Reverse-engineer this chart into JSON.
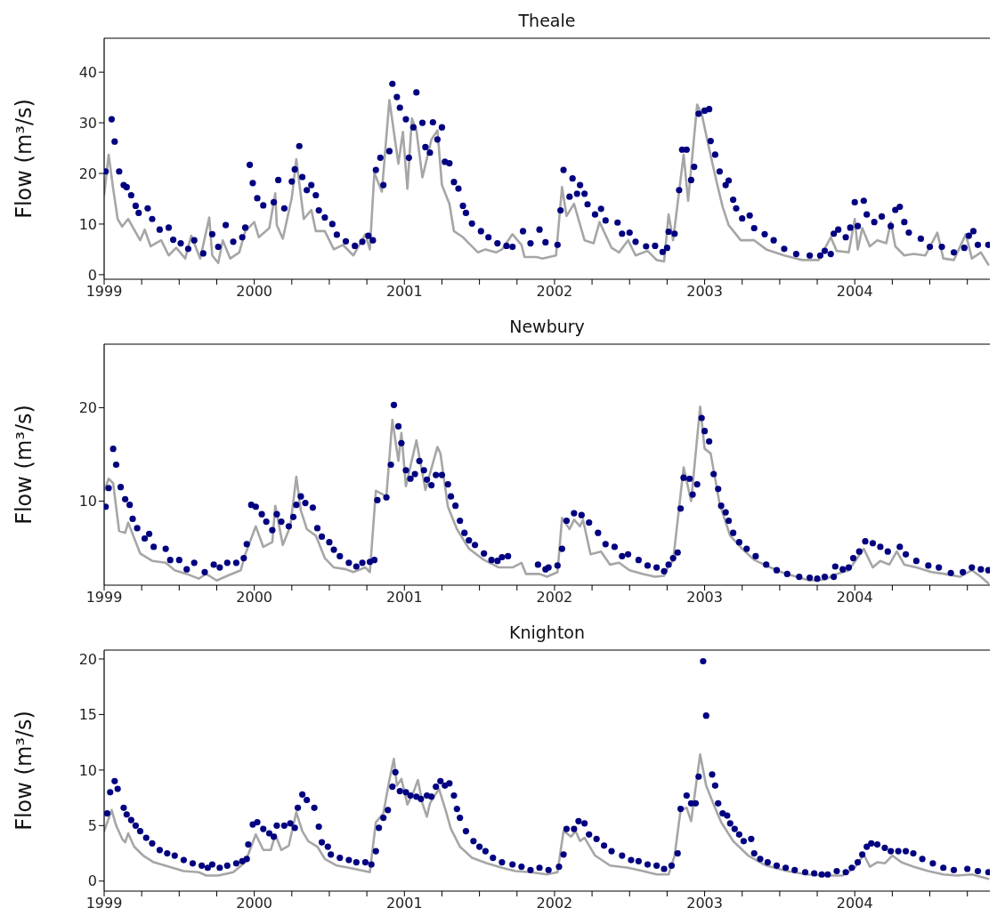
{
  "chart_data": [
    {
      "type": "line",
      "title": "Theale",
      "ylabel": "Flow (m³/s)",
      "xlim": [
        1999,
        2004.9
      ],
      "xticks": [
        1999,
        {
          "value": 1999.25,
          "label": null
        },
        {
          "value": 1999.5,
          "label": null
        },
        {
          "value": 1999.75,
          "label": null
        },
        2000,
        {
          "value": 2000.25,
          "label": null
        },
        {
          "value": 2000.5,
          "label": null
        },
        {
          "value": 2000.75,
          "label": null
        },
        2001,
        {
          "value": 2001.25,
          "label": null
        },
        {
          "value": 2001.5,
          "label": null
        },
        {
          "value": 2001.75,
          "label": null
        },
        2002,
        {
          "value": 2002.25,
          "label": null
        },
        {
          "value": 2002.5,
          "label": null
        },
        {
          "value": 2002.75,
          "label": null
        },
        2003,
        {
          "value": 2003.25,
          "label": null
        },
        {
          "value": 2003.5,
          "label": null
        },
        {
          "value": 2003.75,
          "label": null
        },
        2004,
        {
          "value": 2004.25,
          "label": null
        },
        {
          "value": 2004.5,
          "label": null
        },
        {
          "value": 2004.75,
          "label": null
        }
      ],
      "ylim": [
        -0.9,
        46.7
      ],
      "yticks": [
        0,
        10,
        20,
        30,
        40
      ],
      "series": [
        {
          "color": "#a6a6a6",
          "x": [
            1999.0,
            1999.03,
            1999.06,
            1999.09,
            1999.12,
            1999.16,
            1999.24,
            1999.27,
            1999.31,
            1999.38,
            1999.43,
            1999.48,
            1999.54,
            1999.58,
            1999.64,
            1999.7,
            1999.72,
            1999.76,
            1999.79,
            1999.84,
            1999.9,
            1999.94,
            2000.0,
            2000.03,
            2000.1,
            2000.14,
            2000.15,
            2000.19,
            2000.25,
            2000.28,
            2000.33,
            2000.38,
            2000.41,
            2000.47,
            2000.53,
            2000.59,
            2000.66,
            2000.74,
            2000.77,
            2000.8,
            2000.85,
            2000.9,
            2000.96,
            2000.99,
            2001.02,
            2001.05,
            2001.08,
            2001.12,
            2001.18,
            2001.22,
            2001.25,
            2001.3,
            2001.33,
            2001.39,
            2001.43,
            2001.49,
            2001.54,
            2001.61,
            2001.65,
            2001.72,
            2001.78,
            2001.8,
            2001.88,
            2001.92,
            2002.01,
            2002.05,
            2002.08,
            2002.13,
            2002.2,
            2002.26,
            2002.3,
            2002.38,
            2002.43,
            2002.49,
            2002.54,
            2002.62,
            2002.68,
            2002.73,
            2002.76,
            2002.79,
            2002.86,
            2002.89,
            2002.95,
            2002.98,
            2003.03,
            2003.08,
            2003.12,
            2003.16,
            2003.24,
            2003.33,
            2003.41,
            2003.53,
            2003.65,
            2003.76,
            2003.84,
            2003.88,
            2003.96,
            2004.0,
            2004.02,
            2004.05,
            2004.1,
            2004.15,
            2004.21,
            2004.24,
            2004.27,
            2004.33,
            2004.39,
            2004.47,
            2004.55,
            2004.59,
            2004.66,
            2004.74,
            2004.78,
            2004.84,
            2004.89
          ],
          "values": [
            15.8,
            23.7,
            17.0,
            11.0,
            9.5,
            11.0,
            6.8,
            8.9,
            5.6,
            6.8,
            3.8,
            5.3,
            3.2,
            7.7,
            3.2,
            11.3,
            3.8,
            2.3,
            6.8,
            3.2,
            4.4,
            8.6,
            10.4,
            7.4,
            9.2,
            16.1,
            9.8,
            7.1,
            15.2,
            22.8,
            11.0,
            12.8,
            8.6,
            8.6,
            5.0,
            5.9,
            3.8,
            8.0,
            5.0,
            20.1,
            16.4,
            34.5,
            21.9,
            28.2,
            17.0,
            30.9,
            28.5,
            19.2,
            26.7,
            28.5,
            17.7,
            14.0,
            8.6,
            7.4,
            6.2,
            4.4,
            5.0,
            4.4,
            5.0,
            8.0,
            5.9,
            3.5,
            3.5,
            3.2,
            3.8,
            17.3,
            11.6,
            14.0,
            6.8,
            6.2,
            10.4,
            5.3,
            4.4,
            6.8,
            3.8,
            4.7,
            2.9,
            2.6,
            11.9,
            6.8,
            23.7,
            14.6,
            33.6,
            31.8,
            24.9,
            18.3,
            13.4,
            9.8,
            6.8,
            6.8,
            5.0,
            3.8,
            2.9,
            2.9,
            7.4,
            4.7,
            4.4,
            11.0,
            5.0,
            9.2,
            5.6,
            6.8,
            6.2,
            10.4,
            5.6,
            3.8,
            4.1,
            3.8,
            8.3,
            3.2,
            2.9,
            8.0,
            3.2,
            4.4,
            2.0
          ]
        },
        {
          "type": "scatter",
          "marker": "circle",
          "color": "#000080",
          "x": [
            1999.01,
            1999.05,
            1999.07,
            1999.1,
            1999.13,
            1999.15,
            1999.18,
            1999.21,
            1999.23,
            1999.29,
            1999.32,
            1999.37,
            1999.43,
            1999.46,
            1999.51,
            1999.56,
            1999.6,
            1999.66,
            1999.72,
            1999.76,
            1999.81,
            1999.86,
            1999.92,
            1999.94,
            1999.97,
            1999.99,
            2000.02,
            2000.06,
            2000.13,
            2000.16,
            2000.2,
            2000.25,
            2000.27,
            2000.3,
            2000.32,
            2000.35,
            2000.38,
            2000.41,
            2000.43,
            2000.47,
            2000.52,
            2000.55,
            2000.61,
            2000.67,
            2000.72,
            2000.76,
            2000.79,
            2000.81,
            2000.84,
            2000.86,
            2000.9,
            2000.92,
            2000.95,
            2000.97,
            2001.01,
            2001.03,
            2001.06,
            2001.08,
            2001.12,
            2001.14,
            2001.17,
            2001.19,
            2001.22,
            2001.25,
            2001.27,
            2001.3,
            2001.33,
            2001.36,
            2001.39,
            2001.41,
            2001.45,
            2001.51,
            2001.56,
            2001.62,
            2001.68,
            2001.72,
            2001.79,
            2001.84,
            2001.9,
            2001.94,
            2002.02,
            2002.04,
            2002.06,
            2002.1,
            2002.12,
            2002.15,
            2002.17,
            2002.2,
            2002.22,
            2002.27,
            2002.31,
            2002.34,
            2002.42,
            2002.45,
            2002.5,
            2002.54,
            2002.61,
            2002.67,
            2002.72,
            2002.75,
            2002.76,
            2002.8,
            2002.83,
            2002.85,
            2002.88,
            2002.91,
            2002.93,
            2002.96,
            2003.0,
            2003.03,
            2003.04,
            2003.07,
            2003.1,
            2003.14,
            2003.16,
            2003.19,
            2003.21,
            2003.25,
            2003.3,
            2003.33,
            2003.4,
            2003.46,
            2003.53,
            2003.61,
            2003.7,
            2003.77,
            2003.8,
            2003.84,
            2003.86,
            2003.89,
            2003.94,
            2003.97,
            2004.0,
            2004.02,
            2004.06,
            2004.08,
            2004.13,
            2004.18,
            2004.24,
            2004.27,
            2004.3,
            2004.33,
            2004.36,
            2004.44,
            2004.5,
            2004.58,
            2004.66,
            2004.73,
            2004.76,
            2004.79,
            2004.82,
            2004.89
          ],
          "values": [
            20.4,
            30.7,
            26.3,
            20.4,
            17.7,
            17.3,
            15.7,
            13.6,
            12.2,
            13.1,
            11.0,
            8.9,
            9.3,
            6.9,
            6.2,
            5.1,
            6.8,
            4.2,
            8.0,
            5.5,
            9.8,
            6.5,
            7.4,
            9.3,
            21.7,
            18.1,
            15.1,
            13.7,
            14.3,
            18.7,
            13.1,
            18.4,
            20.8,
            25.4,
            19.3,
            16.7,
            17.7,
            15.7,
            12.7,
            11.3,
            10.0,
            7.9,
            6.6,
            5.7,
            6.5,
            7.7,
            6.8,
            20.7,
            23.1,
            17.7,
            24.4,
            37.7,
            35.1,
            33.0,
            30.7,
            23.1,
            29.1,
            36.0,
            30.0,
            25.2,
            24.1,
            30.1,
            26.7,
            29.1,
            22.3,
            22.0,
            18.3,
            17.0,
            13.6,
            12.2,
            10.1,
            8.6,
            7.4,
            6.2,
            5.7,
            5.5,
            8.6,
            6.2,
            8.9,
            6.4,
            5.9,
            12.7,
            20.7,
            15.4,
            19.0,
            16.0,
            17.7,
            16.0,
            13.9,
            11.9,
            13.0,
            10.7,
            10.3,
            8.1,
            8.3,
            6.5,
            5.6,
            5.7,
            4.5,
            5.3,
            8.5,
            8.1,
            16.7,
            24.7,
            24.7,
            18.7,
            21.3,
            31.8,
            32.4,
            32.7,
            26.4,
            23.7,
            20.4,
            17.7,
            18.6,
            14.8,
            13.1,
            11.1,
            11.7,
            9.2,
            8.0,
            6.8,
            5.1,
            4.1,
            3.8,
            3.8,
            4.7,
            4.1,
            8.1,
            8.9,
            7.4,
            9.3,
            14.3,
            9.6,
            14.6,
            11.9,
            10.4,
            11.5,
            9.6,
            12.8,
            13.4,
            10.4,
            8.3,
            7.1,
            5.5,
            5.5,
            4.4,
            5.3,
            7.7,
            8.6,
            5.9,
            5.9
          ]
        }
      ]
    },
    {
      "type": "line",
      "title": "Newbury",
      "ylabel": "Flow (m³/s)",
      "xlim": [
        1999,
        2004.9
      ],
      "xticks": [
        1999,
        {
          "value": 1999.25,
          "label": null
        },
        {
          "value": 1999.5,
          "label": null
        },
        {
          "value": 1999.75,
          "label": null
        },
        2000,
        {
          "value": 2000.25,
          "label": null
        },
        {
          "value": 2000.5,
          "label": null
        },
        {
          "value": 2000.75,
          "label": null
        },
        2001,
        {
          "value": 2001.25,
          "label": null
        },
        {
          "value": 2001.5,
          "label": null
        },
        {
          "value": 2001.75,
          "label": null
        },
        2002,
        {
          "value": 2002.25,
          "label": null
        },
        {
          "value": 2002.5,
          "label": null
        },
        {
          "value": 2002.75,
          "label": null
        },
        2003,
        {
          "value": 2003.25,
          "label": null
        },
        {
          "value": 2003.5,
          "label": null
        },
        {
          "value": 2003.75,
          "label": null
        },
        2004,
        {
          "value": 2004.25,
          "label": null
        },
        {
          "value": 2004.5,
          "label": null
        },
        {
          "value": 2004.75,
          "label": null
        }
      ],
      "ylim": [
        1,
        26.8
      ],
      "yticks": [
        10,
        20
      ],
      "series": [
        {
          "color": "#a6a6a6",
          "x": [
            1999.0,
            1999.03,
            1999.06,
            1999.1,
            1999.14,
            1999.16,
            1999.24,
            1999.32,
            1999.41,
            1999.47,
            1999.55,
            1999.63,
            1999.68,
            1999.75,
            1999.82,
            1999.91,
            1999.94,
            2000.01,
            2000.06,
            2000.12,
            2000.14,
            2000.19,
            2000.24,
            2000.28,
            2000.31,
            2000.35,
            2000.41,
            2000.47,
            2000.53,
            2000.61,
            2000.66,
            2000.74,
            2000.77,
            2000.81,
            2000.88,
            2000.92,
            2000.96,
            2000.98,
            2001.01,
            2001.08,
            2001.14,
            2001.22,
            2001.24,
            2001.29,
            2001.35,
            2001.43,
            2001.53,
            2001.63,
            2001.72,
            2001.78,
            2001.81,
            2001.9,
            2001.95,
            2002.02,
            2002.05,
            2002.1,
            2002.13,
            2002.17,
            2002.19,
            2002.24,
            2002.31,
            2002.37,
            2002.43,
            2002.5,
            2002.59,
            2002.67,
            2002.73,
            2002.76,
            2002.79,
            2002.86,
            2002.91,
            2002.97,
            2003.0,
            2003.04,
            2003.1,
            2003.17,
            2003.25,
            2003.33,
            2003.41,
            2003.51,
            2003.61,
            2003.7,
            2003.8,
            2003.88,
            2003.96,
            2004.06,
            2004.12,
            2004.17,
            2004.23,
            2004.28,
            2004.33,
            2004.41,
            2004.51,
            2004.6,
            2004.7,
            2004.78,
            2004.84,
            2004.89
          ],
          "values": [
            11.1,
            12.4,
            11.9,
            6.8,
            6.6,
            7.7,
            4.4,
            3.6,
            3.4,
            2.6,
            2.2,
            1.7,
            2.2,
            1.5,
            2.0,
            2.6,
            4.3,
            7.3,
            5.1,
            5.6,
            9.5,
            5.3,
            7.3,
            12.6,
            9.0,
            7.0,
            6.3,
            3.9,
            2.9,
            2.7,
            2.4,
            2.9,
            2.4,
            11.1,
            10.5,
            18.7,
            14.3,
            17.3,
            11.6,
            16.5,
            11.2,
            15.8,
            15.1,
            9.4,
            7.0,
            4.9,
            3.7,
            2.9,
            2.9,
            3.4,
            2.2,
            2.2,
            1.9,
            2.4,
            8.2,
            7.0,
            8.0,
            7.3,
            8.0,
            4.3,
            4.6,
            3.2,
            3.4,
            2.6,
            2.2,
            1.9,
            2.0,
            3.1,
            3.6,
            13.6,
            10.0,
            20.1,
            15.6,
            15.1,
            9.7,
            6.3,
            4.9,
            3.7,
            3.1,
            2.4,
            1.9,
            1.5,
            1.6,
            2.2,
            2.6,
            4.9,
            2.9,
            3.6,
            3.2,
            4.6,
            3.2,
            2.9,
            2.4,
            2.2,
            1.9,
            2.6,
            1.9,
            1.2
          ]
        },
        {
          "type": "scatter",
          "marker": "circle",
          "color": "#000080",
          "x": [
            1999.01,
            1999.03,
            1999.06,
            1999.08,
            1999.11,
            1999.14,
            1999.17,
            1999.19,
            1999.22,
            1999.27,
            1999.3,
            1999.33,
            1999.41,
            1999.44,
            1999.5,
            1999.55,
            1999.6,
            1999.67,
            1999.73,
            1999.77,
            1999.82,
            1999.88,
            1999.93,
            1999.95,
            1999.98,
            2000.01,
            2000.05,
            2000.08,
            2000.12,
            2000.15,
            2000.18,
            2000.23,
            2000.26,
            2000.28,
            2000.31,
            2000.34,
            2000.39,
            2000.42,
            2000.45,
            2000.5,
            2000.53,
            2000.57,
            2000.63,
            2000.68,
            2000.72,
            2000.77,
            2000.8,
            2000.82,
            2000.88,
            2000.91,
            2000.93,
            2000.96,
            2000.98,
            2001.01,
            2001.04,
            2001.07,
            2001.1,
            2001.13,
            2001.15,
            2001.18,
            2001.21,
            2001.25,
            2001.29,
            2001.31,
            2001.34,
            2001.37,
            2001.4,
            2001.43,
            2001.47,
            2001.53,
            2001.58,
            2001.62,
            2001.65,
            2001.69,
            2001.89,
            2001.94,
            2001.96,
            2002.02,
            2002.05,
            2002.08,
            2002.13,
            2002.18,
            2002.23,
            2002.29,
            2002.34,
            2002.4,
            2002.45,
            2002.49,
            2002.56,
            2002.62,
            2002.68,
            2002.73,
            2002.76,
            2002.79,
            2002.82,
            2002.84,
            2002.86,
            2002.9,
            2002.92,
            2002.95,
            2002.98,
            2003.0,
            2003.03,
            2003.06,
            2003.09,
            2003.11,
            2003.14,
            2003.16,
            2003.19,
            2003.23,
            2003.28,
            2003.34,
            2003.41,
            2003.48,
            2003.55,
            2003.63,
            2003.7,
            2003.75,
            2003.8,
            2003.86,
            2003.87,
            2003.92,
            2003.96,
            2003.99,
            2004.03,
            2004.07,
            2004.12,
            2004.17,
            2004.22,
            2004.3,
            2004.34,
            2004.41,
            2004.49,
            2004.56,
            2004.64,
            2004.72,
            2004.78,
            2004.84,
            2004.89
          ],
          "values": [
            9.4,
            11.4,
            15.6,
            13.9,
            11.5,
            10.2,
            9.6,
            8.1,
            7.1,
            6.0,
            6.5,
            5.1,
            4.9,
            3.7,
            3.7,
            2.7,
            3.4,
            2.4,
            3.2,
            2.9,
            3.4,
            3.4,
            3.9,
            5.4,
            9.6,
            9.4,
            8.6,
            7.8,
            6.9,
            8.6,
            7.8,
            7.3,
            8.3,
            9.6,
            10.5,
            9.8,
            9.3,
            7.1,
            6.2,
            5.6,
            4.8,
            4.1,
            3.4,
            3.0,
            3.4,
            3.5,
            3.7,
            10.1,
            10.4,
            13.9,
            20.3,
            18.0,
            16.2,
            13.3,
            12.4,
            12.9,
            14.3,
            13.3,
            12.3,
            11.7,
            12.8,
            12.8,
            11.8,
            10.5,
            9.5,
            7.9,
            6.6,
            5.8,
            5.3,
            4.4,
            3.7,
            3.6,
            4.0,
            4.1,
            3.2,
            2.7,
            2.9,
            3.1,
            4.9,
            7.9,
            8.7,
            8.5,
            7.7,
            6.6,
            5.4,
            5.1,
            4.1,
            4.3,
            3.7,
            3.1,
            2.9,
            2.5,
            3.2,
            3.9,
            4.5,
            9.2,
            12.5,
            12.4,
            10.7,
            11.8,
            18.9,
            17.5,
            16.4,
            12.9,
            11.3,
            9.5,
            8.8,
            7.9,
            6.6,
            5.6,
            4.9,
            4.1,
            3.2,
            2.6,
            2.2,
            1.9,
            1.8,
            1.7,
            1.9,
            1.9,
            3.0,
            2.7,
            2.9,
            3.9,
            4.6,
            5.7,
            5.5,
            5.1,
            4.6,
            5.1,
            4.3,
            3.6,
            3.1,
            2.9,
            2.3,
            2.4,
            2.9,
            2.7,
            2.6
          ]
        }
      ]
    },
    {
      "type": "line",
      "title": "Knighton",
      "ylabel": "Flow (m³/s)",
      "xlim": [
        1999,
        2004.9
      ],
      "xticks": [
        1999,
        {
          "value": 1999.25,
          "label": null
        },
        {
          "value": 1999.5,
          "label": null
        },
        {
          "value": 1999.75,
          "label": null
        },
        2000,
        {
          "value": 2000.25,
          "label": null
        },
        {
          "value": 2000.5,
          "label": null
        },
        {
          "value": 2000.75,
          "label": null
        },
        2001,
        {
          "value": 2001.25,
          "label": null
        },
        {
          "value": 2001.5,
          "label": null
        },
        {
          "value": 2001.75,
          "label": null
        },
        2002,
        {
          "value": 2002.25,
          "label": null
        },
        {
          "value": 2002.5,
          "label": null
        },
        {
          "value": 2002.75,
          "label": null
        },
        2003,
        {
          "value": 2003.25,
          "label": null
        },
        {
          "value": 2003.5,
          "label": null
        },
        {
          "value": 2003.75,
          "label": null
        },
        2004,
        {
          "value": 2004.25,
          "label": null
        },
        {
          "value": 2004.5,
          "label": null
        },
        {
          "value": 2004.75,
          "label": null
        }
      ],
      "ylim": [
        -0.9,
        20.8
      ],
      "yticks": [
        0,
        5,
        10,
        15,
        20
      ],
      "series": [
        {
          "color": "#a6a6a6",
          "x": [
            1999.0,
            1999.05,
            1999.08,
            1999.12,
            1999.14,
            1999.16,
            1999.2,
            1999.26,
            1999.33,
            1999.43,
            1999.53,
            1999.63,
            1999.68,
            1999.76,
            1999.86,
            1999.94,
            2000.01,
            2000.06,
            2000.11,
            2000.14,
            2000.18,
            2000.23,
            2000.28,
            2000.32,
            2000.36,
            2000.42,
            2000.47,
            2000.55,
            2000.63,
            2000.7,
            2000.77,
            2000.81,
            2000.86,
            2000.9,
            2000.93,
            2000.95,
            2000.98,
            2001.02,
            2001.06,
            2001.09,
            2001.12,
            2001.15,
            2001.17,
            2001.23,
            2001.27,
            2001.31,
            2001.37,
            2001.45,
            2001.55,
            2001.65,
            2001.74,
            2001.84,
            2001.95,
            2002.02,
            2002.06,
            2002.11,
            2002.14,
            2002.17,
            2002.2,
            2002.27,
            2002.37,
            2002.49,
            2002.59,
            2002.68,
            2002.76,
            2002.8,
            2002.84,
            2002.88,
            2002.91,
            2002.97,
            2003.01,
            2003.06,
            2003.11,
            2003.19,
            2003.29,
            2003.41,
            2003.55,
            2003.68,
            2003.8,
            2003.92,
            2004.0,
            2004.06,
            2004.1,
            2004.15,
            2004.2,
            2004.25,
            2004.31,
            2004.39,
            2004.49,
            2004.59,
            2004.68,
            2004.78,
            2004.89
          ],
          "values": [
            4.5,
            6.4,
            5.0,
            3.8,
            3.5,
            4.3,
            3.1,
            2.3,
            1.7,
            1.3,
            0.9,
            0.8,
            0.5,
            0.5,
            0.8,
            1.7,
            4.2,
            2.8,
            2.8,
            4.2,
            2.8,
            3.2,
            6.2,
            4.5,
            3.6,
            3.1,
            2.0,
            1.4,
            1.2,
            1.0,
            0.8,
            5.3,
            6.1,
            9.1,
            11.0,
            8.6,
            9.2,
            6.9,
            8.0,
            9.1,
            7.0,
            5.8,
            7.0,
            8.3,
            6.6,
            4.7,
            3.1,
            2.1,
            1.6,
            1.2,
            0.9,
            0.8,
            0.6,
            0.8,
            4.5,
            4.0,
            4.5,
            3.6,
            3.9,
            2.3,
            1.4,
            1.2,
            0.9,
            0.6,
            0.6,
            2.3,
            6.4,
            6.6,
            5.4,
            11.4,
            8.6,
            6.9,
            5.3,
            3.6,
            2.3,
            1.4,
            0.9,
            0.6,
            0.5,
            0.5,
            1.2,
            2.4,
            1.3,
            1.7,
            1.6,
            2.3,
            1.7,
            1.3,
            0.9,
            0.6,
            0.5,
            0.6,
            0.2
          ]
        },
        {
          "type": "scatter",
          "marker": "circle",
          "color": "#000080",
          "x": [
            1999.02,
            1999.04,
            1999.07,
            1999.09,
            1999.13,
            1999.15,
            1999.18,
            1999.21,
            1999.24,
            1999.28,
            1999.32,
            1999.37,
            1999.42,
            1999.47,
            1999.53,
            1999.59,
            1999.65,
            1999.69,
            1999.72,
            1999.77,
            1999.82,
            1999.88,
            1999.92,
            1999.95,
            1999.96,
            1999.99,
            2000.02,
            2000.06,
            2000.1,
            2000.13,
            2000.15,
            2000.2,
            2000.24,
            2000.27,
            2000.29,
            2000.32,
            2000.35,
            2000.4,
            2000.43,
            2000.45,
            2000.49,
            2000.51,
            2000.57,
            2000.63,
            2000.68,
            2000.74,
            2000.78,
            2000.81,
            2000.83,
            2000.86,
            2000.89,
            2000.92,
            2000.94,
            2000.97,
            2001.01,
            2001.04,
            2001.08,
            2001.11,
            2001.15,
            2001.18,
            2001.21,
            2001.24,
            2001.27,
            2001.3,
            2001.33,
            2001.35,
            2001.37,
            2001.41,
            2001.46,
            2001.5,
            2001.54,
            2001.59,
            2001.65,
            2001.72,
            2001.78,
            2001.84,
            2001.9,
            2001.96,
            2002.03,
            2002.06,
            2002.08,
            2002.13,
            2002.16,
            2002.2,
            2002.23,
            2002.28,
            2002.33,
            2002.38,
            2002.45,
            2002.51,
            2002.56,
            2002.62,
            2002.68,
            2002.73,
            2002.78,
            2002.82,
            2002.84,
            2002.88,
            2002.91,
            2002.94,
            2002.96,
            2002.99,
            2003.01,
            2003.05,
            2003.07,
            2003.09,
            2003.12,
            2003.15,
            2003.17,
            2003.2,
            2003.23,
            2003.26,
            2003.31,
            2003.33,
            2003.37,
            2003.42,
            2003.48,
            2003.54,
            2003.6,
            2003.67,
            2003.73,
            2003.78,
            2003.82,
            2003.88,
            2003.94,
            2003.98,
            2004.02,
            2004.05,
            2004.08,
            2004.11,
            2004.15,
            2004.2,
            2004.24,
            2004.29,
            2004.34,
            2004.39,
            2004.45,
            2004.52,
            2004.59,
            2004.66,
            2004.75,
            2004.82,
            2004.89
          ],
          "values": [
            6.1,
            8.0,
            9.0,
            8.3,
            6.6,
            6.0,
            5.5,
            5.0,
            4.5,
            3.9,
            3.4,
            2.8,
            2.5,
            2.3,
            1.9,
            1.6,
            1.4,
            1.2,
            1.5,
            1.2,
            1.4,
            1.6,
            1.8,
            2.0,
            3.3,
            5.1,
            5.3,
            4.7,
            4.3,
            4.0,
            5.0,
            5.0,
            5.2,
            4.8,
            6.6,
            7.8,
            7.3,
            6.6,
            4.9,
            3.5,
            3.1,
            2.4,
            2.1,
            1.9,
            1.7,
            1.7,
            1.5,
            2.7,
            4.8,
            5.7,
            6.4,
            8.5,
            9.8,
            8.1,
            8.0,
            7.7,
            7.6,
            7.4,
            7.7,
            7.6,
            8.5,
            9.0,
            8.6,
            8.8,
            7.7,
            6.5,
            5.7,
            4.5,
            3.6,
            3.1,
            2.7,
            2.1,
            1.7,
            1.5,
            1.3,
            1.0,
            1.2,
            1.0,
            1.3,
            2.4,
            4.7,
            4.7,
            5.4,
            5.2,
            4.2,
            3.8,
            3.2,
            2.7,
            2.3,
            1.9,
            1.8,
            1.5,
            1.4,
            1.1,
            1.4,
            2.5,
            6.5,
            7.7,
            7.0,
            7.0,
            9.4,
            19.8,
            14.9,
            9.6,
            8.6,
            7.0,
            6.1,
            5.9,
            5.2,
            4.7,
            4.2,
            3.6,
            3.8,
            2.5,
            2.0,
            1.7,
            1.4,
            1.2,
            1.0,
            0.8,
            0.7,
            0.6,
            0.6,
            0.9,
            0.8,
            1.2,
            1.7,
            2.4,
            3.1,
            3.4,
            3.3,
            3.0,
            2.7,
            2.7,
            2.7,
            2.5,
            2.0,
            1.6,
            1.2,
            1.0,
            1.1,
            0.9,
            0.8
          ]
        }
      ]
    }
  ]
}
